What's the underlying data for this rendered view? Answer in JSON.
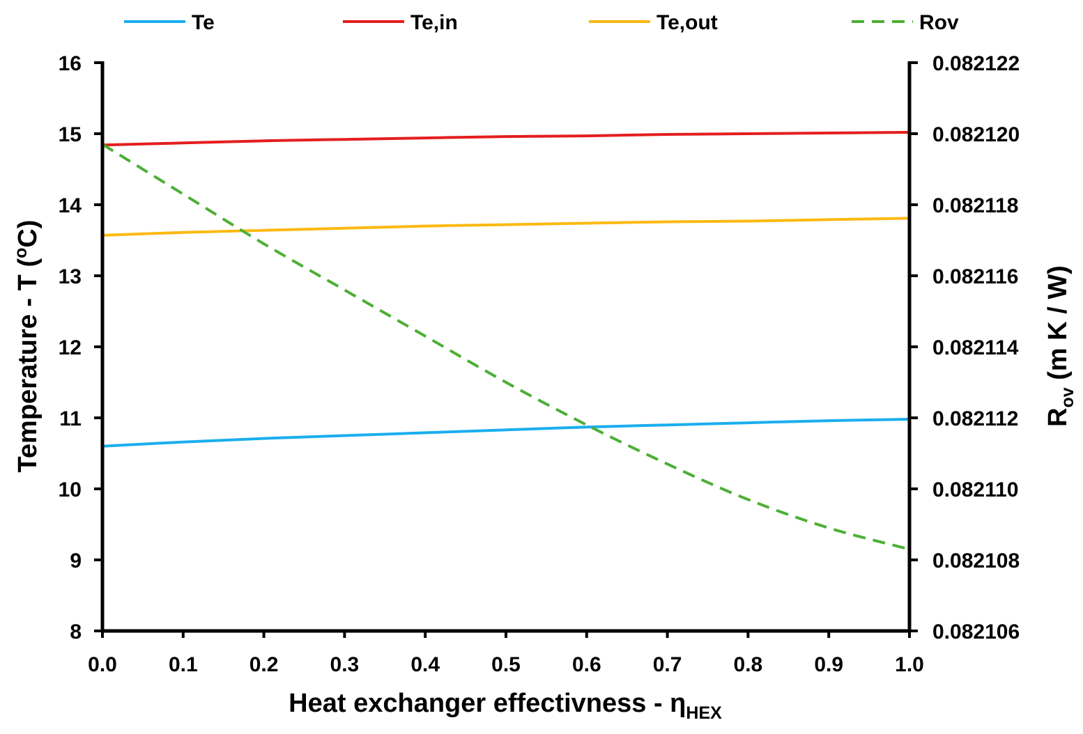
{
  "chart_data": {
    "type": "line",
    "x": [
      0.0,
      0.1,
      0.2,
      0.3,
      0.4,
      0.5,
      0.6,
      0.7,
      0.8,
      0.9,
      1.0
    ],
    "x_tick_labels": [
      "0.0",
      "0.1",
      "0.2",
      "0.3",
      "0.4",
      "0.5",
      "0.6",
      "0.7",
      "0.8",
      "0.9",
      "1.0"
    ],
    "xlim": [
      0,
      1
    ],
    "xlabel": {
      "main": "Heat exchanger effectivness - η",
      "sub": "HEX"
    },
    "ylim": [
      8,
      16
    ],
    "y_ticks": [
      8,
      9,
      10,
      11,
      12,
      13,
      14,
      15,
      16
    ],
    "y_tick_labels": [
      "8",
      "9",
      "10",
      "11",
      "12",
      "13",
      "14",
      "15",
      "16"
    ],
    "ylabel": {
      "main": "Temperature - T (",
      "sup": "o",
      "end": "C)"
    },
    "y2lim": [
      0.082106,
      0.082122
    ],
    "y2_ticks": [
      0.082106,
      0.082108,
      0.08211,
      0.082112,
      0.082114,
      0.082116,
      0.082118,
      0.08212,
      0.082122
    ],
    "y2_tick_labels": [
      "0.082106",
      "0.082108",
      "0.082110",
      "0.082112",
      "0.082114",
      "0.082116",
      "0.082118",
      "0.082120",
      "0.082122"
    ],
    "y2label": {
      "main": "R",
      "sub": "ov",
      "end": " (m K / W)"
    },
    "grid": false,
    "legend_position": "top",
    "series": [
      {
        "name": "Te",
        "axis": "left",
        "color": "#1AAEEF",
        "dash": "solid",
        "values": [
          10.6,
          10.66,
          10.71,
          10.75,
          10.79,
          10.83,
          10.87,
          10.9,
          10.93,
          10.96,
          10.98
        ]
      },
      {
        "name": "Te,in",
        "axis": "left",
        "color": "#E41E1E",
        "dash": "solid",
        "values": [
          14.84,
          14.87,
          14.9,
          14.92,
          14.94,
          14.96,
          14.97,
          14.99,
          15.0,
          15.01,
          15.02
        ]
      },
      {
        "name": "Te,out",
        "axis": "left",
        "color": "#FDB913",
        "dash": "solid",
        "values": [
          13.57,
          13.61,
          13.64,
          13.67,
          13.7,
          13.72,
          13.74,
          13.76,
          13.77,
          13.79,
          13.81
        ]
      },
      {
        "name": "Rov",
        "axis": "right",
        "color": "#4DAF35",
        "dash": "dashed",
        "values": [
          0.0821197,
          0.0821183,
          0.0821169,
          0.0821156,
          0.0821143,
          0.082113,
          0.0821118,
          0.0821107,
          0.0821097,
          0.0821089,
          0.0821083
        ]
      }
    ]
  }
}
